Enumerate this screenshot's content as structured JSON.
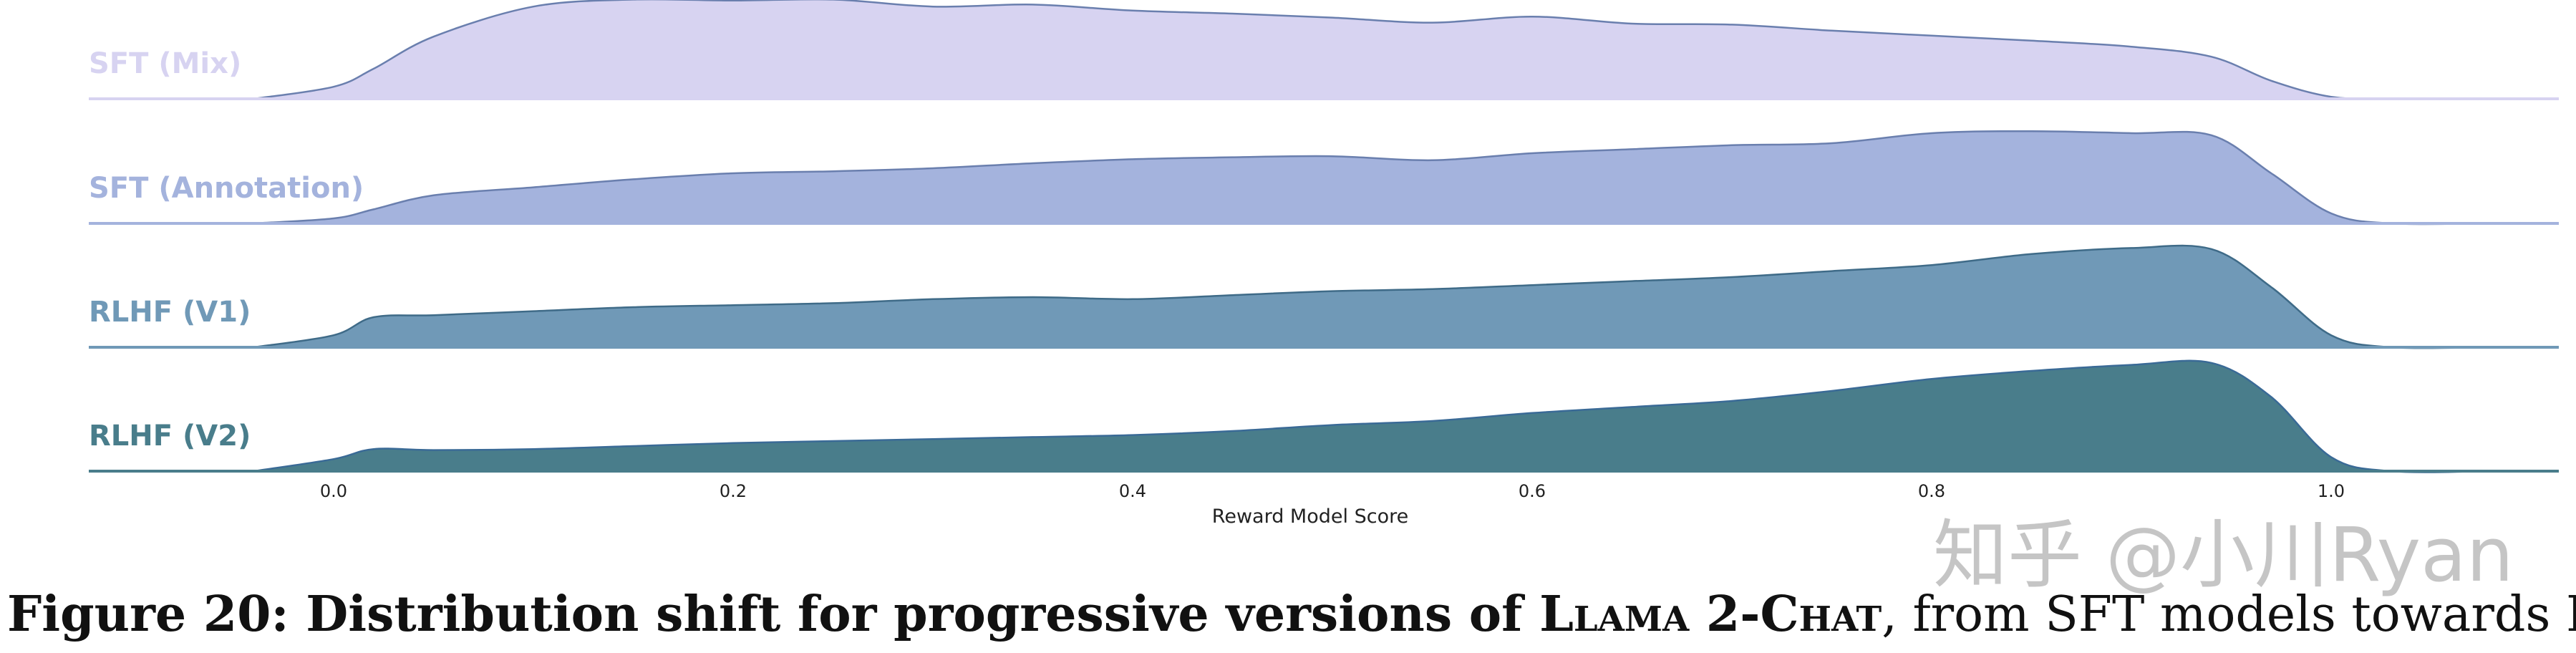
{
  "chart_data": {
    "type": "area",
    "title": "",
    "xlabel": "Reward Model Score",
    "ylabel": "",
    "xlim": [
      -0.12,
      1.12
    ],
    "x_ticks": [
      "0.0",
      "0.2",
      "0.4",
      "0.6",
      "0.8",
      "1.0"
    ],
    "x": [
      -0.04,
      0.0,
      0.02,
      0.05,
      0.1,
      0.15,
      0.2,
      0.25,
      0.3,
      0.35,
      0.4,
      0.45,
      0.5,
      0.55,
      0.6,
      0.65,
      0.7,
      0.75,
      0.8,
      0.85,
      0.9,
      0.94,
      0.97,
      1.0,
      1.03,
      1.08
    ],
    "series": [
      {
        "name": "SFT (Mix)",
        "color": "#d7d3f1",
        "line_color": "#6a7fae",
        "values": [
          0.0,
          0.12,
          0.3,
          0.62,
          0.92,
          0.99,
          0.98,
          0.99,
          0.92,
          0.94,
          0.88,
          0.85,
          0.81,
          0.76,
          0.82,
          0.75,
          0.74,
          0.68,
          0.63,
          0.58,
          0.52,
          0.42,
          0.18,
          0.02,
          0.0,
          0.0
        ]
      },
      {
        "name": "SFT (Annotation)",
        "color": "#a4b3dd",
        "line_color": "#6a7fae",
        "values": [
          0.0,
          0.05,
          0.14,
          0.28,
          0.36,
          0.44,
          0.5,
          0.52,
          0.55,
          0.6,
          0.64,
          0.66,
          0.67,
          0.63,
          0.7,
          0.74,
          0.78,
          0.8,
          0.9,
          0.92,
          0.9,
          0.88,
          0.5,
          0.1,
          0.0,
          0.0
        ]
      },
      {
        "name": "RLHF (V1)",
        "color": "#7099b7",
        "line_color": "#3f6b88",
        "values": [
          0.0,
          0.12,
          0.3,
          0.32,
          0.36,
          0.4,
          0.42,
          0.44,
          0.48,
          0.5,
          0.48,
          0.52,
          0.56,
          0.58,
          0.62,
          0.66,
          0.7,
          0.76,
          0.82,
          0.93,
          0.99,
          0.98,
          0.6,
          0.12,
          0.0,
          0.0
        ]
      },
      {
        "name": "RLHF (V2)",
        "color": "#497d8b",
        "line_color": "#3a6a96",
        "values": [
          0.0,
          0.12,
          0.22,
          0.21,
          0.22,
          0.25,
          0.28,
          0.3,
          0.32,
          0.34,
          0.36,
          0.4,
          0.46,
          0.5,
          0.58,
          0.64,
          0.7,
          0.8,
          0.92,
          1.0,
          1.06,
          1.08,
          0.74,
          0.14,
          0.0,
          0.0
        ]
      }
    ],
    "grid": false,
    "legend": "none"
  },
  "caption": {
    "prefix": "Figure 20: Distribution shift for progressive versions of ",
    "model_name": "Llama 2-Chat",
    "suffix": ", from SFT models towards RLHF."
  },
  "watermark": "知乎 @小川Ryan"
}
